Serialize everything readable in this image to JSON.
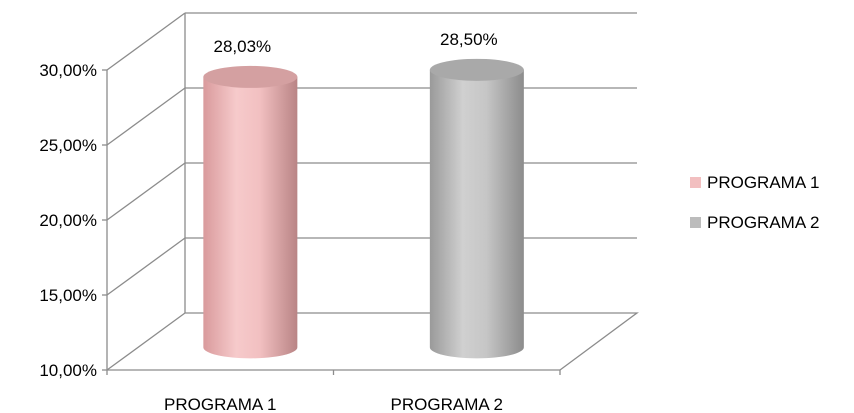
{
  "chart_data": {
    "type": "bar",
    "style": "3d-cylinder",
    "categories": [
      "PROGRAMA 1",
      "PROGRAMA 2"
    ],
    "values": [
      28.03,
      28.5
    ],
    "data_labels": [
      "28,03%",
      "28,50%"
    ],
    "ylim": [
      10,
      30
    ],
    "yticks": [
      10,
      15,
      20,
      25,
      30
    ],
    "ytick_labels": [
      "10,00%",
      "15,00%",
      "20,00%",
      "25,00%",
      "30,00%"
    ],
    "grid": true,
    "legend": {
      "position": "right",
      "entries": [
        "PROGRAMA 1",
        "PROGRAMA 2"
      ]
    },
    "colors": [
      "#f2bfc0",
      "#bcbcbc"
    ],
    "title": "",
    "xlabel": "",
    "ylabel": ""
  }
}
